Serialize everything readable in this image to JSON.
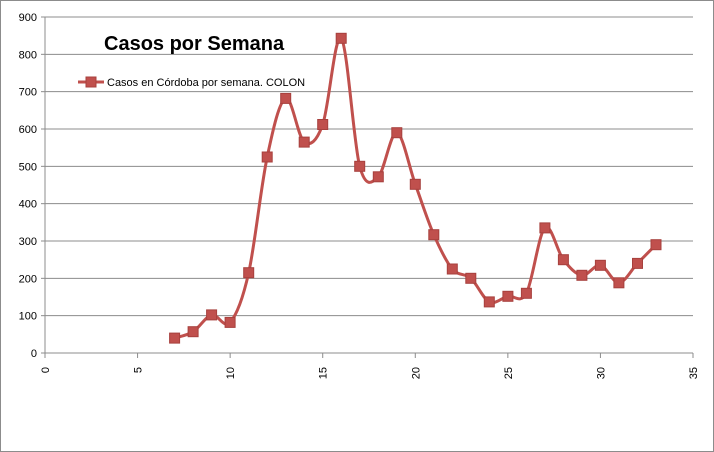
{
  "chart_data": {
    "type": "line",
    "title": "Casos por Semana",
    "xlabel": "",
    "ylabel": "",
    "xlim": [
      0,
      35
    ],
    "ylim": [
      0,
      900
    ],
    "x_ticks": [
      0,
      5,
      10,
      15,
      20,
      25,
      30,
      35
    ],
    "y_ticks": [
      0,
      100,
      200,
      300,
      400,
      500,
      600,
      700,
      800,
      900
    ],
    "x_tick_labels_rotated": true,
    "grid": "horizontal",
    "smooth": true,
    "legend_position": "top-left",
    "series": [
      {
        "name": "Casos en Córdoba por semana. COLON",
        "color": "#C0504D",
        "marker": "square",
        "x": [
          7,
          8,
          9,
          10,
          11,
          12,
          13,
          14,
          15,
          16,
          17,
          18,
          19,
          20,
          21,
          22,
          23,
          24,
          25,
          26,
          27,
          28,
          29,
          30,
          31,
          32,
          33
        ],
        "y": [
          40,
          57,
          102,
          82,
          215,
          525,
          682,
          565,
          612,
          843,
          500,
          472,
          590,
          452,
          317,
          225,
          200,
          137,
          152,
          160,
          335,
          250,
          208,
          235,
          188,
          240,
          290
        ]
      }
    ]
  }
}
